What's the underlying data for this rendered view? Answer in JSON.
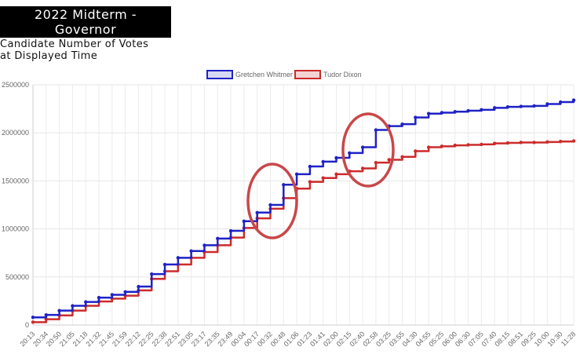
{
  "title_line1": "2022 Midterm -",
  "title_line2": "Governor",
  "subtitle_line1": "Candidate Number of Votes",
  "subtitle_line2": "at Displayed Time",
  "chart_data": {
    "type": "line",
    "title": "2022 Midterm - Governor",
    "subtitle": "Candidate Number of Votes at Displayed Time",
    "xlabel": "",
    "ylabel": "",
    "ylim": [
      0,
      2500000
    ],
    "yticks": [
      0,
      500000,
      1000000,
      1500000,
      2000000,
      2500000
    ],
    "ytick_labels": [
      "0",
      "500000",
      "1000000",
      "1500000",
      "2000000",
      "2500000"
    ],
    "grid": true,
    "legend_position": "top",
    "x_tick_labels": [
      "20:13",
      "20:34",
      "20:50",
      "21:05",
      "21:18",
      "21:32",
      "21:45",
      "21:59",
      "22:12",
      "22:25",
      "22:38",
      "22:51",
      "23:05",
      "23:17",
      "23:35",
      "23:49",
      "00:04",
      "00:17",
      "00:32",
      "00:48",
      "01:06",
      "01:23",
      "01:41",
      "02:00",
      "02:15",
      "02:40",
      "02:58",
      "03:25",
      "03:55",
      "04:30",
      "04:55",
      "05:25",
      "06:00",
      "06:30",
      "07:05",
      "07:40",
      "08:15",
      "08:51",
      "09:25",
      "10:00",
      "10:30",
      "11:28"
    ],
    "series": [
      {
        "name": "Gretchen Whitmer",
        "color": "#1f22c4",
        "values": [
          80000,
          105000,
          150000,
          200000,
          240000,
          285000,
          315000,
          345000,
          400000,
          530000,
          630000,
          700000,
          770000,
          830000,
          900000,
          980000,
          1080000,
          1170000,
          1250000,
          1460000,
          1570000,
          1650000,
          1700000,
          1740000,
          1790000,
          1850000,
          2030000,
          2070000,
          2090000,
          2160000,
          2200000,
          2210000,
          2220000,
          2230000,
          2240000,
          2260000,
          2270000,
          2275000,
          2280000,
          2300000,
          2320000,
          2340000
        ]
      },
      {
        "name": "Tudor Dixon",
        "color": "#cc2b2b",
        "values": [
          30000,
          60000,
          100000,
          150000,
          200000,
          245000,
          275000,
          305000,
          360000,
          480000,
          560000,
          630000,
          700000,
          760000,
          830000,
          910000,
          1010000,
          1110000,
          1210000,
          1320000,
          1420000,
          1490000,
          1530000,
          1570000,
          1600000,
          1630000,
          1690000,
          1720000,
          1750000,
          1810000,
          1850000,
          1860000,
          1870000,
          1875000,
          1880000,
          1890000,
          1895000,
          1900000,
          1900000,
          1905000,
          1910000,
          1915000
        ]
      }
    ]
  }
}
